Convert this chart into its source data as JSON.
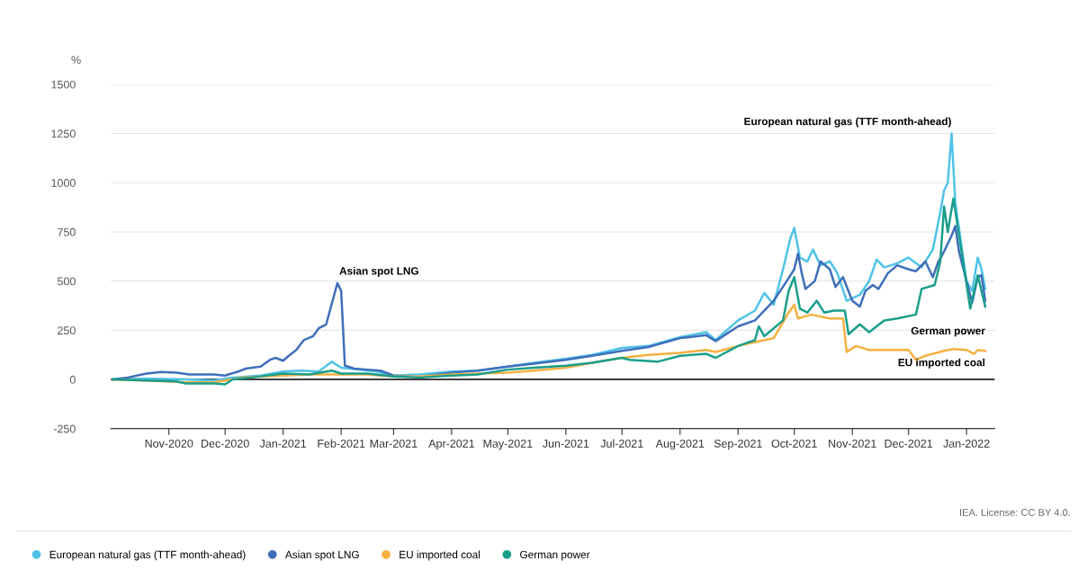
{
  "chart_data": {
    "type": "line",
    "ylabel": "%",
    "xlim": [
      "2020-10-01",
      "2022-01-16"
    ],
    "ylim": [
      -250,
      1500
    ],
    "yticks": [
      -250,
      0,
      250,
      500,
      750,
      1000,
      1250,
      1500
    ],
    "xticks": [
      {
        "value": "2020-11-01",
        "label": "Nov-2020"
      },
      {
        "value": "2020-12-01",
        "label": "Dec-2020"
      },
      {
        "value": "2021-01-01",
        "label": "Jan-2021"
      },
      {
        "value": "2021-02-01",
        "label": "Feb-2021"
      },
      {
        "value": "2021-03-01",
        "label": "Mar-2021"
      },
      {
        "value": "2021-04-01",
        "label": "Apr-2021"
      },
      {
        "value": "2021-05-01",
        "label": "May-2021"
      },
      {
        "value": "2021-06-01",
        "label": "Jun-2021"
      },
      {
        "value": "2021-07-01",
        "label": "Jul-2021"
      },
      {
        "value": "2021-08-01",
        "label": "Aug-2021"
      },
      {
        "value": "2021-09-01",
        "label": "Sep-2021"
      },
      {
        "value": "2021-10-01",
        "label": "Oct-2021"
      },
      {
        "value": "2021-11-01",
        "label": "Nov-2021"
      },
      {
        "value": "2021-12-01",
        "label": "Dec-2021"
      },
      {
        "value": "2022-01-01",
        "label": "Jan-2022"
      }
    ],
    "grid": "y",
    "legend": "bottom",
    "line_style": "solid",
    "ref_lines": [
      {
        "axis": "y",
        "value": 0,
        "label": null,
        "color": "#000000"
      }
    ],
    "series": [
      {
        "name": "European natural gas (TTF month-ahead)",
        "color": "#4fc3e8",
        "x": [
          "2020-10-02",
          "2020-10-20",
          "2020-11-10",
          "2020-11-25",
          "2020-12-05",
          "2020-12-20",
          "2021-01-01",
          "2021-01-10",
          "2021-01-20",
          "2021-01-27",
          "2021-02-01",
          "2021-02-10",
          "2021-02-20",
          "2021-03-01",
          "2021-03-15",
          "2021-04-01",
          "2021-04-15",
          "2021-05-01",
          "2021-05-15",
          "2021-06-01",
          "2021-06-15",
          "2021-07-01",
          "2021-07-15",
          "2021-08-01",
          "2021-08-15",
          "2021-08-20",
          "2021-09-01",
          "2021-09-10",
          "2021-09-15",
          "2021-09-20",
          "2021-09-25",
          "2021-09-29",
          "2021-10-01",
          "2021-10-04",
          "2021-10-08",
          "2021-10-11",
          "2021-10-15",
          "2021-10-20",
          "2021-10-24",
          "2021-10-29",
          "2021-11-05",
          "2021-11-10",
          "2021-11-14",
          "2021-11-18",
          "2021-11-25",
          "2021-12-01",
          "2021-12-08",
          "2021-12-14",
          "2021-12-18",
          "2021-12-20",
          "2021-12-22",
          "2021-12-24",
          "2021-12-26",
          "2022-01-01",
          "2022-01-04",
          "2022-01-07",
          "2022-01-09",
          "2022-01-11"
        ],
        "values": [
          0,
          5,
          0,
          -5,
          10,
          20,
          40,
          45,
          40,
          90,
          60,
          50,
          40,
          20,
          25,
          40,
          45,
          65,
          85,
          105,
          125,
          160,
          170,
          215,
          240,
          200,
          300,
          350,
          440,
          380,
          560,
          720,
          770,
          620,
          600,
          660,
          580,
          600,
          540,
          400,
          430,
          500,
          610,
          570,
          590,
          620,
          570,
          660,
          850,
          960,
          1000,
          1250,
          900,
          500,
          450,
          620,
          560,
          460
        ]
      },
      {
        "name": "Asian spot LNG",
        "color": "#3f6fba",
        "x": [
          "2020-10-02",
          "2020-10-10",
          "2020-10-20",
          "2020-10-28",
          "2020-11-05",
          "2020-11-12",
          "2020-11-25",
          "2020-12-01",
          "2020-12-08",
          "2020-12-12",
          "2020-12-20",
          "2020-12-25",
          "2020-12-28",
          "2021-01-01",
          "2021-01-04",
          "2021-01-08",
          "2021-01-12",
          "2021-01-17",
          "2021-01-20",
          "2021-01-24",
          "2021-01-28",
          "2021-01-30",
          "2021-02-01",
          "2021-02-03",
          "2021-02-08",
          "2021-02-15",
          "2021-02-22",
          "2021-03-01",
          "2021-03-08",
          "2021-03-15",
          "2021-03-20",
          "2021-04-01",
          "2021-04-15",
          "2021-05-01",
          "2021-05-15",
          "2021-06-01",
          "2021-06-15",
          "2021-07-01",
          "2021-07-15",
          "2021-08-01",
          "2021-08-15",
          "2021-08-20",
          "2021-09-01",
          "2021-09-10",
          "2021-09-20",
          "2021-09-27",
          "2021-10-01",
          "2021-10-03",
          "2021-10-05",
          "2021-10-07",
          "2021-10-12",
          "2021-10-15",
          "2021-10-20",
          "2021-10-23",
          "2021-10-27",
          "2021-11-01",
          "2021-11-05",
          "2021-11-08",
          "2021-11-12",
          "2021-11-15",
          "2021-11-20",
          "2021-11-25",
          "2021-12-01",
          "2021-12-05",
          "2021-12-10",
          "2021-12-14",
          "2021-12-17",
          "2021-12-20",
          "2021-12-24",
          "2021-12-26",
          "2021-12-28",
          "2022-01-01",
          "2022-01-04",
          "2022-01-07",
          "2022-01-09",
          "2022-01-11"
        ],
        "values": [
          0,
          10,
          30,
          38,
          35,
          25,
          25,
          20,
          40,
          55,
          65,
          100,
          110,
          95,
          120,
          150,
          200,
          220,
          260,
          280,
          420,
          490,
          450,
          70,
          55,
          50,
          45,
          20,
          15,
          10,
          20,
          35,
          45,
          65,
          80,
          100,
          120,
          145,
          165,
          210,
          225,
          195,
          270,
          300,
          400,
          500,
          560,
          640,
          540,
          460,
          500,
          600,
          560,
          470,
          520,
          400,
          370,
          450,
          480,
          460,
          540,
          580,
          560,
          550,
          600,
          520,
          600,
          650,
          730,
          780,
          650,
          500,
          390,
          520,
          530,
          400
        ]
      },
      {
        "name": "EU imported coal",
        "color": "#f5b041",
        "x": [
          "2020-10-02",
          "2020-10-20",
          "2020-11-10",
          "2020-11-25",
          "2020-12-01",
          "2020-12-10",
          "2021-01-01",
          "2021-01-15",
          "2021-02-01",
          "2021-02-15",
          "2021-03-01",
          "2021-03-15",
          "2021-04-01",
          "2021-04-15",
          "2021-05-01",
          "2021-05-15",
          "2021-06-01",
          "2021-06-15",
          "2021-07-01",
          "2021-07-15",
          "2021-08-01",
          "2021-08-15",
          "2021-08-20",
          "2021-09-01",
          "2021-09-10",
          "2021-09-20",
          "2021-09-28",
          "2021-10-01",
          "2021-10-03",
          "2021-10-10",
          "2021-10-20",
          "2021-10-27",
          "2021-10-29",
          "2021-11-03",
          "2021-11-10",
          "2021-12-01",
          "2021-12-05",
          "2021-12-10",
          "2021-12-20",
          "2021-12-25",
          "2022-01-01",
          "2022-01-05",
          "2022-01-07",
          "2022-01-11"
        ],
        "values": [
          0,
          -5,
          -15,
          -15,
          -5,
          10,
          20,
          25,
          25,
          25,
          15,
          15,
          25,
          30,
          35,
          45,
          60,
          85,
          110,
          125,
          135,
          150,
          140,
          170,
          190,
          210,
          340,
          380,
          310,
          330,
          310,
          310,
          140,
          170,
          150,
          150,
          100,
          120,
          145,
          155,
          150,
          130,
          150,
          145
        ]
      },
      {
        "name": "German power",
        "color": "#1a9e8a",
        "x": [
          "2020-10-02",
          "2020-10-20",
          "2020-11-05",
          "2020-11-10",
          "2020-11-25",
          "2020-12-01",
          "2020-12-05",
          "2020-12-15",
          "2021-01-01",
          "2021-01-15",
          "2021-01-27",
          "2021-02-01",
          "2021-02-15",
          "2021-03-01",
          "2021-03-15",
          "2021-04-01",
          "2021-04-15",
          "2021-05-01",
          "2021-05-15",
          "2021-06-01",
          "2021-06-15",
          "2021-07-01",
          "2021-07-05",
          "2021-07-20",
          "2021-08-01",
          "2021-08-15",
          "2021-08-20",
          "2021-09-01",
          "2021-09-10",
          "2021-09-12",
          "2021-09-15",
          "2021-09-25",
          "2021-09-28",
          "2021-10-01",
          "2021-10-04",
          "2021-10-08",
          "2021-10-13",
          "2021-10-17",
          "2021-10-22",
          "2021-10-28",
          "2021-10-30",
          "2021-11-05",
          "2021-11-10",
          "2021-11-18",
          "2021-11-25",
          "2021-12-05",
          "2021-12-08",
          "2021-12-15",
          "2021-12-18",
          "2021-12-20",
          "2021-12-22",
          "2021-12-25",
          "2022-01-03",
          "2022-01-07",
          "2022-01-11"
        ],
        "values": [
          0,
          -5,
          -10,
          -20,
          -20,
          -25,
          0,
          10,
          30,
          25,
          45,
          30,
          30,
          15,
          10,
          20,
          25,
          50,
          60,
          70,
          85,
          110,
          100,
          90,
          120,
          130,
          110,
          170,
          200,
          270,
          220,
          300,
          450,
          520,
          360,
          340,
          400,
          340,
          350,
          350,
          230,
          280,
          240,
          300,
          310,
          330,
          460,
          480,
          600,
          880,
          750,
          920,
          360,
          530,
          370
        ]
      }
    ],
    "annotations": [
      {
        "text": "Asian spot LNG",
        "x": "2021-01-31",
        "y": 490
      },
      {
        "text": "European natural gas (TTF month-ahead)",
        "x": "2021-12-24",
        "y": 1250
      },
      {
        "text": "German power",
        "x": "2022-01-11",
        "y": 370
      },
      {
        "text": "EU imported coal",
        "x": "2022-01-11",
        "y": 145
      },
      "IEA. License: CC BY 4.0."
    ]
  }
}
